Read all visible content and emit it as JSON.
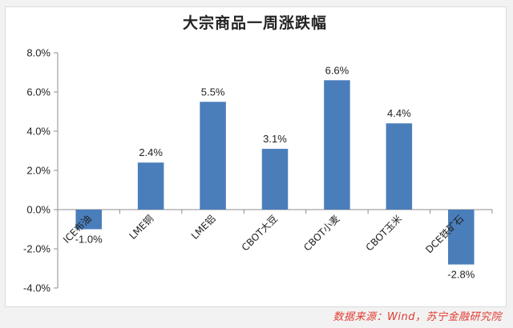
{
  "chart_data": {
    "type": "bar",
    "title": "大宗商品一周涨跌幅",
    "categories": [
      "ICE布油",
      "LME铜",
      "LME铝",
      "CBOT大豆",
      "CBOT小麦",
      "CBOT玉米",
      "DCE铁矿石"
    ],
    "values": [
      -1.0,
      2.4,
      5.5,
      3.1,
      6.6,
      4.4,
      -2.8
    ],
    "value_labels": [
      "-1.0%",
      "2.4%",
      "5.5%",
      "3.1%",
      "6.6%",
      "4.4%",
      "-2.8%"
    ],
    "ylim": [
      -4.0,
      8.0
    ],
    "yticks": [
      -4.0,
      -2.0,
      0.0,
      2.0,
      4.0,
      6.0,
      8.0
    ],
    "ytick_labels": [
      "-4.0%",
      "-2.0%",
      "0.0%",
      "2.0%",
      "4.0%",
      "6.0%",
      "8.0%"
    ],
    "xlabel": "",
    "ylabel": "",
    "grid": false,
    "bar_color": "#4a7ebb",
    "source": "数据来源：Wind，苏宁金融研究院"
  }
}
